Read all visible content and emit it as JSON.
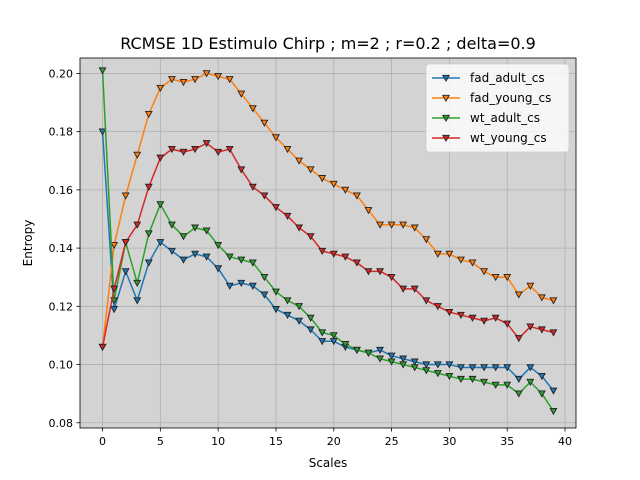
{
  "chart_data": {
    "type": "line",
    "title": "RCMSE 1D Estimulo Chirp ; m=2 ; r=0.2 ; delta=0.9",
    "xlabel": "Scales",
    "ylabel": "Entropy",
    "xlim": [
      -1.95,
      40.95
    ],
    "ylim": [
      0.0782,
      0.2053
    ],
    "xticks": [
      0,
      5,
      10,
      15,
      20,
      25,
      30,
      35,
      40
    ],
    "yticks": [
      0.08,
      0.1,
      0.12,
      0.14,
      0.16,
      0.18,
      0.2
    ],
    "ytick_labels": [
      "0.08",
      "0.10",
      "0.12",
      "0.14",
      "0.16",
      "0.18",
      "0.20"
    ],
    "grid": true,
    "legend_position": "top-right",
    "background_color": "#d3d3d3",
    "marker": "triangle-down",
    "x": [
      0,
      1,
      2,
      3,
      4,
      5,
      6,
      7,
      8,
      9,
      10,
      11,
      12,
      13,
      14,
      15,
      16,
      17,
      18,
      19,
      20,
      21,
      22,
      23,
      24,
      25,
      26,
      27,
      28,
      29,
      30,
      31,
      32,
      33,
      34,
      35,
      36,
      37,
      38,
      39
    ],
    "series": [
      {
        "name": "fad_adult_cs",
        "color": "#1f77b4",
        "values": [
          0.18,
          0.119,
          0.132,
          0.122,
          0.135,
          0.142,
          0.139,
          0.136,
          0.138,
          0.137,
          0.133,
          0.127,
          0.128,
          0.127,
          0.124,
          0.119,
          0.117,
          0.115,
          0.112,
          0.108,
          0.108,
          0.106,
          0.105,
          0.104,
          0.105,
          0.103,
          0.102,
          0.101,
          0.1,
          0.1,
          0.1,
          0.099,
          0.099,
          0.099,
          0.099,
          0.099,
          0.095,
          0.099,
          0.096,
          0.091
        ]
      },
      {
        "name": "fad_young_cs",
        "color": "#ff7f0e",
        "values": [
          0.106,
          0.141,
          0.158,
          0.172,
          0.186,
          0.195,
          0.198,
          0.197,
          0.198,
          0.2,
          0.199,
          0.198,
          0.193,
          0.188,
          0.183,
          0.178,
          0.174,
          0.17,
          0.167,
          0.164,
          0.162,
          0.16,
          0.158,
          0.153,
          0.148,
          0.148,
          0.148,
          0.147,
          0.143,
          0.138,
          0.138,
          0.136,
          0.135,
          0.132,
          0.13,
          0.13,
          0.124,
          0.127,
          0.123,
          0.122
        ]
      },
      {
        "name": "wt_adult_cs",
        "color": "#2ca02c",
        "values": [
          0.201,
          0.122,
          0.142,
          0.128,
          0.145,
          0.155,
          0.148,
          0.144,
          0.147,
          0.146,
          0.141,
          0.137,
          0.136,
          0.135,
          0.13,
          0.125,
          0.122,
          0.12,
          0.116,
          0.111,
          0.11,
          0.107,
          0.105,
          0.104,
          0.102,
          0.101,
          0.1,
          0.099,
          0.098,
          0.097,
          0.096,
          0.095,
          0.095,
          0.094,
          0.093,
          0.093,
          0.09,
          0.094,
          0.09,
          0.084
        ]
      },
      {
        "name": "wt_young_cs",
        "color": "#d62728",
        "values": [
          0.106,
          0.126,
          0.142,
          0.148,
          0.161,
          0.171,
          0.174,
          0.173,
          0.174,
          0.176,
          0.173,
          0.174,
          0.167,
          0.161,
          0.158,
          0.154,
          0.151,
          0.147,
          0.144,
          0.139,
          0.138,
          0.137,
          0.135,
          0.132,
          0.132,
          0.13,
          0.126,
          0.126,
          0.122,
          0.12,
          0.118,
          0.117,
          0.116,
          0.115,
          0.116,
          0.114,
          0.109,
          0.113,
          0.112,
          0.111
        ]
      }
    ]
  }
}
